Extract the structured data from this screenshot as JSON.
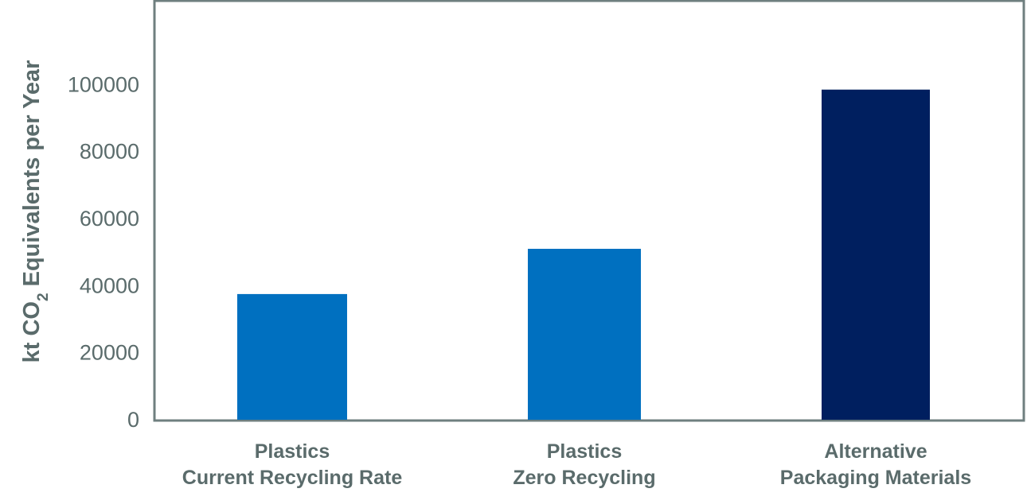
{
  "chart_data": {
    "type": "bar",
    "categories": [
      [
        "Plastics",
        "Current Recycling Rate"
      ],
      [
        "Plastics",
        "Zero Recycling"
      ],
      [
        "Alternative",
        "Packaging Materials"
      ]
    ],
    "values": [
      37500,
      51000,
      98500
    ],
    "bar_colors": [
      "#0070c0",
      "#0070c0",
      "#001f5f"
    ],
    "ylabel_parts": {
      "pre": "kt CO",
      "sub": "2",
      "post": " Equivalents per Year"
    },
    "yticks": [
      0,
      20000,
      40000,
      60000,
      80000,
      100000
    ],
    "ylim": [
      0,
      125000
    ],
    "title": "",
    "xlabel": "",
    "grid": false,
    "frame_color": "#6f7f7f",
    "text_color": "#5a6b6b"
  }
}
